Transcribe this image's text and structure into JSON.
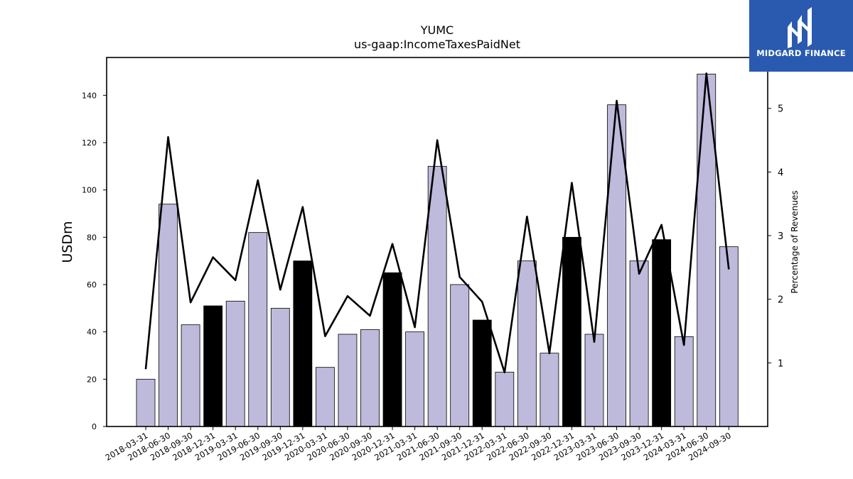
{
  "logo": {
    "text": "MIDGARD FINANCE"
  },
  "chart_data": {
    "type": "bar",
    "title": "YUMC",
    "subtitle": "us-gaap:IncomeTaxesPaidNet",
    "ylabel": "USDm",
    "ylabel_right": "Percentage of Revenues",
    "ylim": [
      0,
      156
    ],
    "ylim_right": [
      0,
      5.8
    ],
    "yticks": [
      0,
      20,
      40,
      60,
      80,
      100,
      120,
      140
    ],
    "yticks_right": [
      1,
      2,
      3,
      4,
      5
    ],
    "categories": [
      "2018-03-31",
      "2018-06-30",
      "2018-09-30",
      "2018-12-31",
      "2019-03-31",
      "2019-06-30",
      "2019-09-30",
      "2019-12-31",
      "2020-03-31",
      "2020-06-30",
      "2020-09-30",
      "2020-12-31",
      "2021-03-31",
      "2021-06-30",
      "2021-09-30",
      "2021-12-31",
      "2022-03-31",
      "2022-06-30",
      "2022-09-30",
      "2022-12-31",
      "2023-03-31",
      "2023-06-30",
      "2023-09-30",
      "2023-12-31",
      "2024-03-31",
      "2024-06-30",
      "2024-09-30"
    ],
    "series": [
      {
        "type": "bar",
        "values": [
          20,
          94,
          43,
          51,
          53,
          82,
          50,
          70,
          25,
          39,
          41,
          65,
          40,
          110,
          60,
          45,
          23,
          70,
          31,
          80,
          39,
          136,
          70,
          79,
          38,
          149,
          76
        ]
      },
      {
        "type": "line",
        "axis": "right",
        "values": [
          0.9,
          4.55,
          1.95,
          2.66,
          2.3,
          3.87,
          2.15,
          3.45,
          1.42,
          2.05,
          1.74,
          2.87,
          1.56,
          4.5,
          2.35,
          1.96,
          0.85,
          3.3,
          1.15,
          3.83,
          1.33,
          5.12,
          2.4,
          3.17,
          1.28,
          5.55,
          2.47
        ]
      }
    ],
    "highlight_categories": [
      "2018-12-31",
      "2019-12-31",
      "2020-12-31",
      "2021-12-31",
      "2022-12-31",
      "2023-12-31"
    ],
    "colors": {
      "bar": "#bebadb",
      "bar_highlight": "#000000",
      "bar_edge": "#000000",
      "line": "#000000"
    },
    "grid": false
  }
}
